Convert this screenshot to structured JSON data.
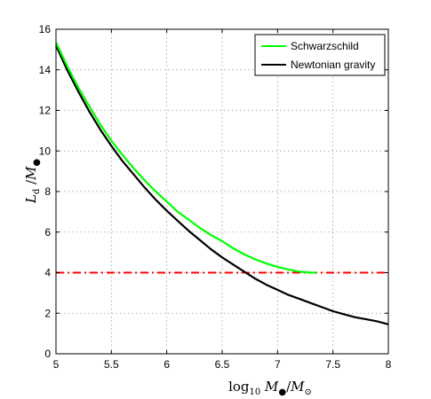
{
  "chart_data": {
    "type": "line",
    "xlabel": "log10 M•/M☉",
    "ylabel": "Ld / M•",
    "xlim": [
      5,
      8
    ],
    "ylim": [
      0,
      16
    ],
    "xticks": [
      5,
      5.5,
      6,
      6.5,
      7,
      7.5,
      8
    ],
    "yticks": [
      0,
      2,
      4,
      6,
      8,
      10,
      12,
      14,
      16
    ],
    "xtick_labels": [
      "5",
      "5.5",
      "6",
      "6.5",
      "7",
      "7.5",
      "8"
    ],
    "ytick_labels": [
      "0",
      "2",
      "4",
      "6",
      "8",
      "10",
      "12",
      "14",
      "16"
    ],
    "grid": true,
    "legend_position": "top-right",
    "series": [
      {
        "name": "Schwarzschild",
        "color": "#00ff00",
        "x": [
          5.0,
          5.1,
          5.2,
          5.3,
          5.4,
          5.5,
          5.6,
          5.7,
          5.8,
          5.9,
          6.0,
          6.1,
          6.2,
          6.3,
          6.4,
          6.5,
          6.6,
          6.7,
          6.8,
          6.9,
          7.0,
          7.1,
          7.2,
          7.3,
          7.35
        ],
        "y": [
          15.35,
          14.2,
          13.15,
          12.2,
          11.3,
          10.5,
          9.8,
          9.15,
          8.55,
          8.0,
          7.5,
          7.0,
          6.6,
          6.2,
          5.85,
          5.55,
          5.2,
          4.9,
          4.65,
          4.45,
          4.28,
          4.15,
          4.05,
          4.0,
          4.0
        ]
      },
      {
        "name": "Newtonian gravity",
        "color": "#000000",
        "x": [
          5.0,
          5.1,
          5.2,
          5.3,
          5.4,
          5.5,
          5.6,
          5.7,
          5.8,
          5.9,
          6.0,
          6.1,
          6.2,
          6.3,
          6.4,
          6.5,
          6.6,
          6.7,
          6.8,
          6.9,
          7.0,
          7.1,
          7.2,
          7.3,
          7.4,
          7.5,
          7.6,
          7.7,
          7.8,
          7.9,
          8.0
        ],
        "y": [
          15.2,
          14.0,
          12.95,
          11.95,
          11.05,
          10.25,
          9.5,
          8.85,
          8.2,
          7.6,
          7.05,
          6.55,
          6.05,
          5.6,
          5.15,
          4.75,
          4.4,
          4.05,
          3.7,
          3.4,
          3.15,
          2.9,
          2.7,
          2.5,
          2.3,
          2.1,
          1.95,
          1.8,
          1.7,
          1.6,
          1.45
        ]
      }
    ],
    "reference_line": {
      "y": 4,
      "color": "#ff0000",
      "style": "dash-dot"
    }
  }
}
